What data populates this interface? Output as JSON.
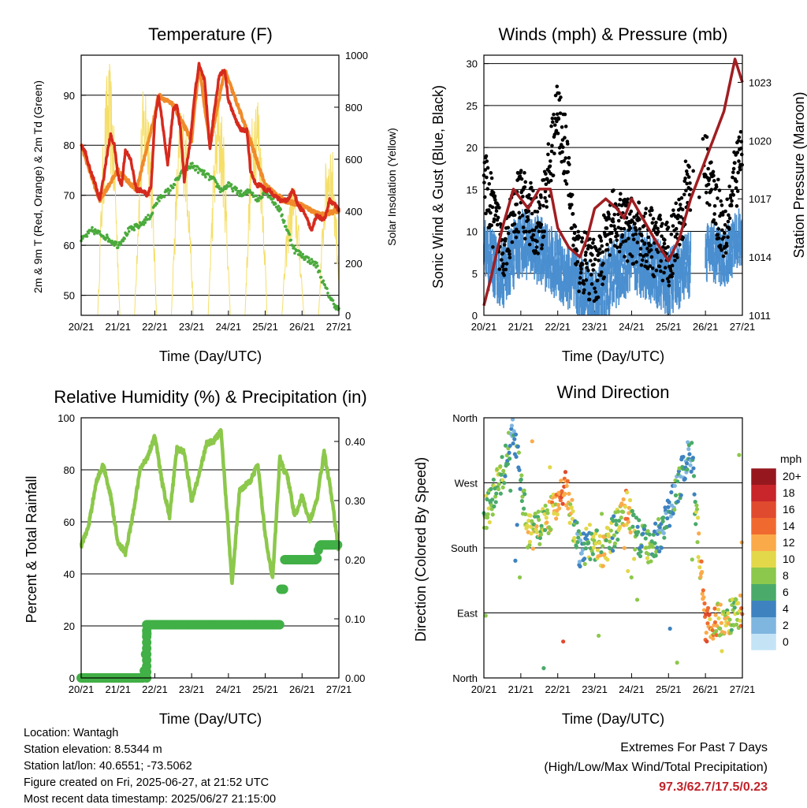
{
  "panels": {
    "temperature": {
      "title": "Temperature (F)",
      "ylabel_left": "2m & 9m T (Red, Orange) & 2m Td (Green)",
      "ylabel_right": "Solar Insolation (Yellow)",
      "xlabel": "Time (Day/UTC)"
    },
    "winds": {
      "title": "Winds (mph) & Pressure (mb)",
      "ylabel_left": "Sonic Wind & Gust (Blue, Black)",
      "ylabel_right": "Station Pressure (Maroon)",
      "xlabel": "Time (Day/UTC)"
    },
    "humidity": {
      "title": "Relative Humidity (%) & Precipitation (in)",
      "ylabel_left": "Percent & Total Rainfall",
      "xlabel": "Time (Day/UTC)"
    },
    "direction": {
      "title": "Wind Direction",
      "ylabel_left": "Direction (Colored By Speed)",
      "xlabel": "Time (Day/UTC)",
      "legend_title": "mph"
    }
  },
  "info": {
    "location": "Location: Wantagh",
    "elevation": "Station elevation: 8.5344 m",
    "latlon": "Station lat/lon: 40.6551; -73.5062",
    "created": "Figure created on Fri, 2025-06-27, at 21:52 UTC",
    "recent": "Most recent data timestamp: 2025/06/27 21:15:00"
  },
  "extremes": {
    "line1": "Extremes For Past 7 Days",
    "line2": "(High/Low/Max Wind/Total Precipitation)",
    "values": "97.3/62.7/17.5/0.23"
  },
  "colors": {
    "temp2m": "#d62a1e",
    "temp9m": "#f08a2a",
    "dewpoint": "#4aaa3c",
    "solar": "#f5df6a",
    "wind": "#4a8fd0",
    "gust": "#000000",
    "pressure": "#a01e22",
    "rh": "#8cc84b",
    "precip": "#41b046"
  },
  "chart_data": [
    {
      "type": "line",
      "title": "Temperature (F)",
      "xlabel": "Time (Day/UTC)",
      "ylabel": "2m & 9m T (Red, Orange) & 2m Td (Green)",
      "y2label": "Solar Insolation (Yellow)",
      "x_ticks": [
        "20/21",
        "21/21",
        "22/21",
        "23/21",
        "24/21",
        "25/21",
        "26/21",
        "27/21"
      ],
      "ylim": [
        46,
        98
      ],
      "y_ticks": [
        50,
        60,
        70,
        80,
        90
      ],
      "y2lim": [
        0,
        1000
      ],
      "y2_ticks": [
        0,
        200,
        400,
        600,
        800,
        1000
      ],
      "grid": true,
      "series": [
        {
          "name": "2m T",
          "axis": "left",
          "color": "#d62a1e",
          "x": [
            0,
            0.1,
            0.2,
            0.35,
            0.5,
            0.6,
            0.7,
            0.8,
            0.9,
            1.0,
            1.1,
            1.2,
            1.35,
            1.5,
            1.65,
            1.8,
            1.9,
            2.0,
            2.1,
            2.2,
            2.35,
            2.5,
            2.6,
            2.7,
            2.8,
            2.95,
            3.1,
            3.2,
            3.35,
            3.5,
            3.6,
            3.75,
            3.9,
            4.0,
            4.2,
            4.35,
            4.5,
            4.6,
            4.75,
            4.9,
            5.0,
            5.1,
            5.25,
            5.4,
            5.6,
            5.75,
            5.9,
            6.0,
            6.1,
            6.25,
            6.4,
            6.6,
            6.75,
            6.9,
            7.0
          ],
          "values": [
            80,
            79,
            76,
            73,
            69,
            73,
            78,
            82,
            80,
            74,
            72,
            79,
            77,
            71,
            71,
            70,
            72,
            85,
            90,
            85,
            76,
            87,
            88,
            83,
            73,
            80,
            91,
            96,
            93,
            79,
            86,
            94,
            95,
            89,
            85,
            83,
            83,
            75,
            72,
            72,
            71,
            71,
            70,
            69,
            69,
            71,
            68,
            67,
            66,
            63,
            66,
            65,
            69,
            68,
            67
          ]
        },
        {
          "name": "9m T",
          "axis": "left",
          "color": "#f08a2a",
          "x": [
            0,
            0.5,
            1.0,
            1.5,
            2.0,
            2.1,
            2.5,
            3.0,
            3.2,
            3.5,
            3.9,
            4.5,
            5.0,
            5.5,
            6.0,
            6.5,
            7.0
          ],
          "values": [
            80,
            69,
            75,
            71,
            86,
            90,
            88,
            81,
            96,
            80,
            95,
            83,
            72,
            69,
            68,
            66,
            67
          ]
        },
        {
          "name": "2m Td",
          "axis": "left",
          "color": "#4aaa3c",
          "x": [
            0,
            0.3,
            0.6,
            0.8,
            1.0,
            1.3,
            1.6,
            1.9,
            2.0,
            2.2,
            2.4,
            2.6,
            2.8,
            3.0,
            3.2,
            3.4,
            3.6,
            3.8,
            4.0,
            4.2,
            4.4,
            4.6,
            4.8,
            5.0,
            5.2,
            5.4,
            5.6,
            5.8,
            6.0,
            6.2,
            6.4,
            6.6,
            6.8,
            7.0
          ],
          "values": [
            61,
            63,
            62,
            61,
            60,
            63,
            64,
            66,
            68,
            70,
            71,
            73,
            75,
            76,
            75,
            74,
            73,
            71,
            72,
            71,
            70,
            71,
            69,
            71,
            69,
            67,
            63,
            59,
            58,
            57,
            56,
            52,
            49,
            47
          ]
        },
        {
          "name": "Solar Insolation",
          "axis": "right",
          "color": "#f5df6a",
          "peaks_x": [
            0.75,
            1.75,
            2.75,
            3.75,
            4.75,
            5.75,
            6.75
          ],
          "peaks": [
            980,
            930,
            840,
            860,
            920,
            520,
            700
          ]
        }
      ]
    },
    {
      "type": "scatter",
      "title": "Winds (mph) & Pressure (mb)",
      "xlabel": "Time (Day/UTC)",
      "ylabel": "Sonic Wind & Gust (Blue, Black)",
      "y2label": "Station Pressure (Maroon)",
      "x_ticks": [
        "20/21",
        "21/21",
        "22/21",
        "23/21",
        "24/21",
        "25/21",
        "26/21",
        "27/21"
      ],
      "ylim": [
        0,
        31
      ],
      "y_ticks": [
        0,
        5,
        10,
        15,
        20,
        25,
        30
      ],
      "y2lim": [
        1011,
        1024.4
      ],
      "y2_ticks": [
        1011,
        1014,
        1017,
        1020,
        1023
      ],
      "grid": true,
      "series": [
        {
          "name": "Wind",
          "color": "#4a8fd0",
          "x": [
            0,
            0.5,
            1.0,
            1.5,
            2.0,
            2.5,
            3.0,
            3.5,
            4.0,
            4.5,
            5.0,
            5.5,
            6.0,
            6.5,
            7.0
          ],
          "values": [
            9,
            6,
            10,
            9,
            7,
            5,
            3,
            6,
            8,
            7,
            5,
            7,
            9,
            8,
            11
          ]
        },
        {
          "name": "Gust",
          "color": "#000000",
          "x": [
            0,
            0.5,
            1.0,
            1.5,
            2.0,
            2.2,
            2.5,
            3.0,
            3.5,
            4.0,
            4.5,
            5.0,
            5.5,
            6.0,
            6.5,
            7.0
          ],
          "values": [
            16,
            8,
            14,
            10,
            24,
            20,
            7,
            5,
            11,
            10,
            9,
            7,
            15,
            18,
            10,
            20
          ]
        },
        {
          "name": "Pressure",
          "color": "#a01e22",
          "x": [
            0,
            0.2,
            0.5,
            0.8,
            1.0,
            1.2,
            1.5,
            1.8,
            2.0,
            2.3,
            2.6,
            2.8,
            3.0,
            3.3,
            3.6,
            3.8,
            4.0,
            4.3,
            4.6,
            5.0,
            5.3,
            5.6,
            5.9,
            6.2,
            6.5,
            6.8,
            7.0
          ],
          "values": [
            1011.5,
            1013,
            1015.5,
            1017.5,
            1017,
            1016.5,
            1017.5,
            1017.5,
            1015.5,
            1014.5,
            1014,
            1015,
            1016.5,
            1017,
            1016.5,
            1016,
            1017,
            1016,
            1015,
            1013.8,
            1015,
            1017,
            1018.5,
            1020,
            1021.5,
            1024.2,
            1023
          ]
        }
      ]
    },
    {
      "type": "line",
      "title": "Relative Humidity (%) & Precipitation (in)",
      "xlabel": "Time (Day/UTC)",
      "ylabel": "Percent & Total Rainfall",
      "x_ticks": [
        "20/21",
        "21/21",
        "22/21",
        "23/21",
        "24/21",
        "25/21",
        "26/21",
        "27/21"
      ],
      "ylim": [
        0,
        100
      ],
      "y_ticks": [
        0,
        20,
        40,
        60,
        80,
        100
      ],
      "y2lim": [
        0,
        0.44
      ],
      "y2_ticks": [
        "0.00",
        "0.10",
        "0.20",
        "0.30",
        "0.40"
      ],
      "grid": true,
      "series": [
        {
          "name": "RH",
          "color": "#8cc84b",
          "x": [
            0,
            0.2,
            0.4,
            0.6,
            0.8,
            1.0,
            1.2,
            1.4,
            1.6,
            1.8,
            2.0,
            2.2,
            2.4,
            2.6,
            2.8,
            3.0,
            3.2,
            3.4,
            3.6,
            3.8,
            4.0,
            4.1,
            4.3,
            4.6,
            4.8,
            5.0,
            5.2,
            5.4,
            5.5,
            5.6,
            5.8,
            6.0,
            6.2,
            6.4,
            6.6,
            6.8,
            7.0
          ],
          "values": [
            51,
            58,
            75,
            82,
            70,
            52,
            48,
            62,
            80,
            85,
            93,
            75,
            62,
            88,
            87,
            68,
            78,
            90,
            91,
            95,
            56,
            36,
            72,
            76,
            82,
            55,
            38,
            85,
            80,
            78,
            62,
            70,
            60,
            68,
            87,
            70,
            48
          ]
        },
        {
          "name": "Precipitation",
          "color": "#41b046",
          "x": [
            0,
            1.0,
            1.7,
            1.75,
            1.8,
            5.0,
            5.4,
            5.42,
            5.45,
            5.5,
            6.0,
            6.4,
            6.45,
            6.5,
            7.0
          ],
          "values": [
            0,
            0,
            0,
            0.04,
            0.09,
            0.09,
            0.09,
            0.15,
            0.2,
            0.2,
            0.2,
            0.2,
            0.22,
            0.225,
            0.225
          ]
        }
      ]
    },
    {
      "type": "scatter",
      "title": "Wind Direction",
      "xlabel": "Time (Day/UTC)",
      "ylabel": "Direction (Colored By Speed)",
      "x_ticks": [
        "20/21",
        "21/21",
        "22/21",
        "23/21",
        "24/21",
        "25/21",
        "26/21",
        "27/21"
      ],
      "y_ticks": [
        "North",
        "East",
        "South",
        "West",
        "North"
      ],
      "ylim": [
        0,
        360
      ],
      "grid": true,
      "colorbar": {
        "title": "mph",
        "labels": [
          "20+",
          "18",
          "16",
          "14",
          "12",
          "10",
          "8",
          "6",
          "4",
          "2",
          "0"
        ],
        "colors": [
          "#96181e",
          "#c8262a",
          "#e04a2e",
          "#f06a30",
          "#fbaa4a",
          "#e2d84a",
          "#8cc84b",
          "#4aaa6a",
          "#3e82c0",
          "#7fb6e0",
          "#c4e4f6"
        ]
      },
      "series": [
        {
          "name": "Direction",
          "x": [
            0.1,
            0.6,
            0.8,
            1.2,
            1.6,
            2.2,
            2.6,
            2.9,
            3.2,
            3.5,
            3.9,
            4.1,
            4.5,
            4.9,
            5.3,
            5.6,
            6.0,
            6.4,
            6.8,
            7.0
          ],
          "values": [
            230,
            300,
            340,
            200,
            210,
            265,
            175,
            190,
            170,
            200,
            240,
            200,
            180,
            210,
            270,
            320,
            70,
            80,
            90,
            95
          ],
          "speeds": [
            8,
            6,
            4,
            10,
            8,
            14,
            4,
            8,
            10,
            6,
            12,
            6,
            8,
            4,
            6,
            4,
            14,
            10,
            8,
            12
          ]
        }
      ]
    }
  ]
}
